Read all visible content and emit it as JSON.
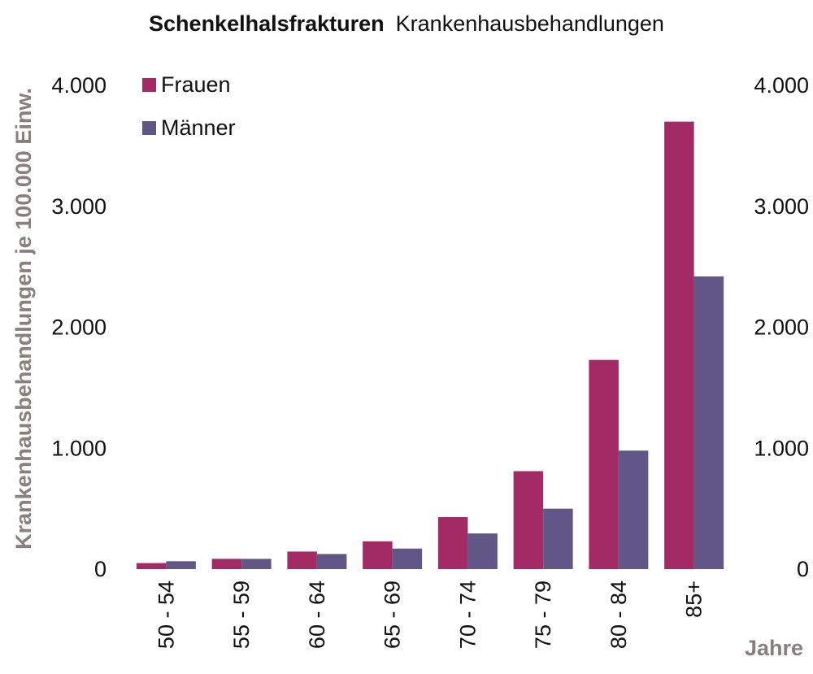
{
  "chart_data": {
    "type": "bar",
    "title": "Schenkelhalsfrakturen",
    "subtitle": "Krankenhausbehandlungen",
    "xlabel": "Jahre",
    "ylabel": "Krankenhausbehandlungen je 100.000 Einw.",
    "categories": [
      "50 - 54",
      "55 - 59",
      "60 - 64",
      "65 - 69",
      "70 - 74",
      "75 - 79",
      "80 - 84",
      "85+"
    ],
    "series": [
      {
        "name": "Frauen",
        "color": "#a22b65",
        "values": [
          50,
          85,
          145,
          230,
          430,
          810,
          1730,
          3700
        ]
      },
      {
        "name": "Männer",
        "color": "#615787",
        "values": [
          65,
          85,
          125,
          170,
          295,
          500,
          980,
          2420
        ]
      }
    ],
    "ylim": [
      0,
      4000
    ],
    "yticks": [
      0,
      1000,
      2000,
      3000,
      4000
    ],
    "ytick_labels": [
      "0",
      "1.000",
      "2.000",
      "3.000",
      "4.000"
    ],
    "grid": false,
    "legend_position": "top-left",
    "secondary_y_axis": true
  }
}
